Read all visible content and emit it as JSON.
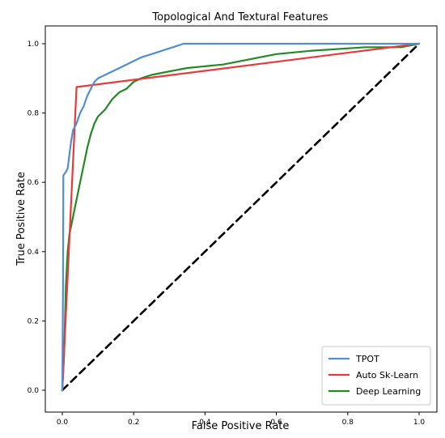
{
  "chart_data": {
    "type": "line",
    "title": "Topological And Textural Features",
    "xlabel": "False Positive Rate",
    "ylabel": "True Positive Rate",
    "xlim": [
      0.0,
      1.0
    ],
    "ylim": [
      0.0,
      1.0
    ],
    "x_ticks": [
      "0.0",
      "0.2",
      "0.4",
      "0.6",
      "0.8",
      "1.0"
    ],
    "y_ticks": [
      "0.0",
      "0.2",
      "0.4",
      "0.6",
      "0.8",
      "1.0"
    ],
    "grid": false,
    "legend_position": "lower-right",
    "series": [
      {
        "name": "TPOT",
        "color": "#4f8ed0",
        "points": [
          [
            0.0,
            0.0
          ],
          [
            0.002,
            0.3
          ],
          [
            0.003,
            0.62
          ],
          [
            0.01,
            0.63
          ],
          [
            0.015,
            0.64
          ],
          [
            0.02,
            0.68
          ],
          [
            0.025,
            0.72
          ],
          [
            0.03,
            0.75
          ],
          [
            0.04,
            0.77
          ],
          [
            0.05,
            0.8
          ],
          [
            0.06,
            0.82
          ],
          [
            0.07,
            0.85
          ],
          [
            0.08,
            0.87
          ],
          [
            0.09,
            0.89
          ],
          [
            0.1,
            0.9
          ],
          [
            0.12,
            0.91
          ],
          [
            0.14,
            0.92
          ],
          [
            0.16,
            0.93
          ],
          [
            0.18,
            0.94
          ],
          [
            0.2,
            0.95
          ],
          [
            0.22,
            0.96
          ],
          [
            0.25,
            0.97
          ],
          [
            0.28,
            0.98
          ],
          [
            0.31,
            0.99
          ],
          [
            0.34,
            1.0
          ],
          [
            0.5,
            1.0
          ],
          [
            0.8,
            1.0
          ],
          [
            1.0,
            1.0
          ]
        ]
      },
      {
        "name": "Auto Sk-Learn",
        "color": "#e83a3a",
        "points": [
          [
            0.0,
            0.0
          ],
          [
            0.04,
            0.875
          ],
          [
            1.0,
            1.0
          ]
        ]
      },
      {
        "name": "Deep Learning",
        "color": "#238a23",
        "points": [
          [
            0.0,
            0.0
          ],
          [
            0.005,
            0.1
          ],
          [
            0.01,
            0.3
          ],
          [
            0.015,
            0.4
          ],
          [
            0.02,
            0.45
          ],
          [
            0.03,
            0.5
          ],
          [
            0.04,
            0.55
          ],
          [
            0.05,
            0.6
          ],
          [
            0.06,
            0.65
          ],
          [
            0.07,
            0.7
          ],
          [
            0.08,
            0.74
          ],
          [
            0.09,
            0.77
          ],
          [
            0.1,
            0.79
          ],
          [
            0.12,
            0.81
          ],
          [
            0.14,
            0.84
          ],
          [
            0.16,
            0.86
          ],
          [
            0.18,
            0.87
          ],
          [
            0.2,
            0.89
          ],
          [
            0.22,
            0.9
          ],
          [
            0.25,
            0.91
          ],
          [
            0.3,
            0.92
          ],
          [
            0.35,
            0.93
          ],
          [
            0.45,
            0.94
          ],
          [
            0.5,
            0.95
          ],
          [
            0.55,
            0.96
          ],
          [
            0.6,
            0.97
          ],
          [
            0.7,
            0.98
          ],
          [
            0.85,
            0.99
          ],
          [
            0.95,
            0.99
          ],
          [
            1.0,
            1.0
          ]
        ]
      },
      {
        "name": "",
        "color": "#000000",
        "dashed": true,
        "points": [
          [
            0.0,
            0.0
          ],
          [
            1.0,
            1.0
          ]
        ]
      }
    ]
  }
}
